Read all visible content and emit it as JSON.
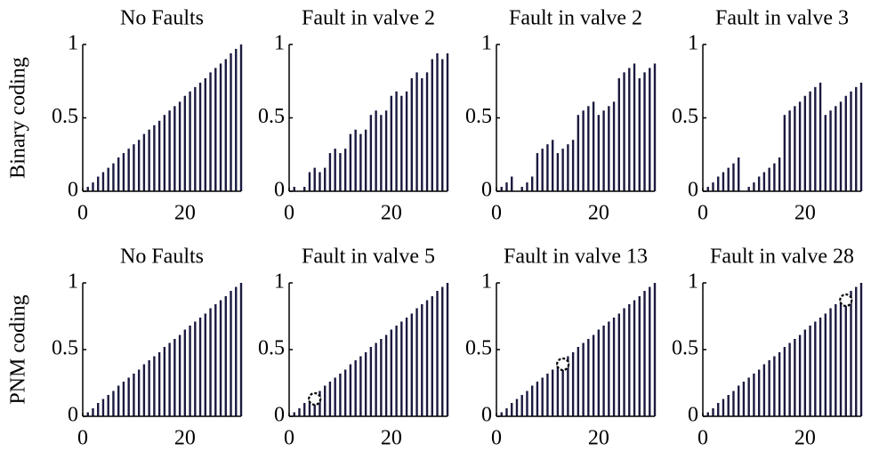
{
  "chart_data": [
    {
      "type": "bar",
      "title": "No Faults",
      "ylabel": "Binary coding",
      "color": "#1a1a40",
      "x": [
        1,
        2,
        3,
        4,
        5,
        6,
        7,
        8,
        9,
        10,
        11,
        12,
        13,
        14,
        15,
        16,
        17,
        18,
        19,
        20,
        21,
        22,
        23,
        24,
        25,
        26,
        27,
        28,
        29,
        30,
        31
      ],
      "values": [
        0.03,
        0.06,
        0.1,
        0.13,
        0.16,
        0.19,
        0.23,
        0.26,
        0.29,
        0.32,
        0.35,
        0.39,
        0.42,
        0.45,
        0.48,
        0.52,
        0.55,
        0.58,
        0.61,
        0.65,
        0.68,
        0.71,
        0.74,
        0.77,
        0.81,
        0.84,
        0.87,
        0.9,
        0.94,
        0.97,
        1
      ],
      "xlim": [
        0,
        31
      ],
      "ylim": [
        0,
        1
      ],
      "xticks": [
        0,
        20
      ],
      "yticks": [
        0,
        0.5,
        1
      ]
    },
    {
      "type": "bar",
      "title": "Fault in valve 2",
      "color": "#1a1a40",
      "x": [
        1,
        2,
        3,
        4,
        5,
        6,
        7,
        8,
        9,
        10,
        11,
        12,
        13,
        14,
        15,
        16,
        17,
        18,
        19,
        20,
        21,
        22,
        23,
        24,
        25,
        26,
        27,
        28,
        29,
        30,
        31
      ],
      "values": [
        0.03,
        0,
        0.03,
        0.13,
        0.16,
        0.13,
        0.16,
        0.26,
        0.29,
        0.26,
        0.29,
        0.39,
        0.42,
        0.39,
        0.42,
        0.52,
        0.55,
        0.52,
        0.55,
        0.65,
        0.68,
        0.65,
        0.68,
        0.77,
        0.81,
        0.77,
        0.81,
        0.9,
        0.94,
        0.9,
        0.94
      ],
      "xlim": [
        0,
        31
      ],
      "ylim": [
        0,
        1
      ],
      "xticks": [
        0,
        20
      ],
      "yticks": [
        0,
        0.5,
        1
      ]
    },
    {
      "type": "bar",
      "title": "Fault in valve 2",
      "color": "#1a1a40",
      "x": [
        1,
        2,
        3,
        4,
        5,
        6,
        7,
        8,
        9,
        10,
        11,
        12,
        13,
        14,
        15,
        16,
        17,
        18,
        19,
        20,
        21,
        22,
        23,
        24,
        25,
        26,
        27,
        28,
        29,
        30,
        31
      ],
      "values": [
        0.03,
        0.06,
        0.1,
        0,
        0.03,
        0.06,
        0.1,
        0.26,
        0.29,
        0.32,
        0.35,
        0.26,
        0.29,
        0.32,
        0.35,
        0.52,
        0.55,
        0.58,
        0.61,
        0.52,
        0.55,
        0.58,
        0.61,
        0.77,
        0.81,
        0.84,
        0.87,
        0.77,
        0.81,
        0.84,
        0.87
      ],
      "xlim": [
        0,
        31
      ],
      "ylim": [
        0,
        1
      ],
      "xticks": [
        0,
        20
      ],
      "yticks": [
        0,
        0.5,
        1
      ]
    },
    {
      "type": "bar",
      "title": "Fault in valve 3",
      "color": "#1a1a40",
      "x": [
        1,
        2,
        3,
        4,
        5,
        6,
        7,
        8,
        9,
        10,
        11,
        12,
        13,
        14,
        15,
        16,
        17,
        18,
        19,
        20,
        21,
        22,
        23,
        24,
        25,
        26,
        27,
        28,
        29,
        30,
        31
      ],
      "values": [
        0.03,
        0.06,
        0.1,
        0.13,
        0.16,
        0.19,
        0.23,
        0,
        0.03,
        0.06,
        0.1,
        0.13,
        0.16,
        0.19,
        0.23,
        0.52,
        0.55,
        0.58,
        0.61,
        0.65,
        0.68,
        0.71,
        0.74,
        0.52,
        0.55,
        0.58,
        0.61,
        0.65,
        0.68,
        0.71,
        0.74
      ],
      "xlim": [
        0,
        31
      ],
      "ylim": [
        0,
        1
      ],
      "xticks": [
        0,
        20
      ],
      "yticks": [
        0,
        0.5,
        1
      ]
    },
    {
      "type": "bar",
      "title": "No Faults",
      "ylabel": "PNM coding",
      "color": "#1a1a40",
      "x": [
        1,
        2,
        3,
        4,
        5,
        6,
        7,
        8,
        9,
        10,
        11,
        12,
        13,
        14,
        15,
        16,
        17,
        18,
        19,
        20,
        21,
        22,
        23,
        24,
        25,
        26,
        27,
        28,
        29,
        30,
        31
      ],
      "values": [
        0.03,
        0.06,
        0.1,
        0.13,
        0.16,
        0.19,
        0.23,
        0.26,
        0.29,
        0.32,
        0.35,
        0.39,
        0.42,
        0.45,
        0.48,
        0.52,
        0.55,
        0.58,
        0.61,
        0.65,
        0.68,
        0.71,
        0.74,
        0.77,
        0.81,
        0.84,
        0.87,
        0.9,
        0.94,
        0.97,
        1
      ],
      "xlim": [
        0,
        31
      ],
      "ylim": [
        0,
        1
      ],
      "xticks": [
        0,
        20
      ],
      "yticks": [
        0,
        0.5,
        1
      ]
    },
    {
      "type": "bar",
      "title": "Fault in valve 5",
      "color": "#1a1a40",
      "highlight_x": 5,
      "x": [
        1,
        2,
        3,
        4,
        5,
        6,
        7,
        8,
        9,
        10,
        11,
        12,
        13,
        14,
        15,
        16,
        17,
        18,
        19,
        20,
        21,
        22,
        23,
        24,
        25,
        26,
        27,
        28,
        29,
        30,
        31
      ],
      "values": [
        0.03,
        0.06,
        0.1,
        0.13,
        0.13,
        0.19,
        0.23,
        0.26,
        0.29,
        0.32,
        0.35,
        0.39,
        0.42,
        0.45,
        0.48,
        0.52,
        0.55,
        0.58,
        0.61,
        0.65,
        0.68,
        0.71,
        0.74,
        0.77,
        0.81,
        0.84,
        0.87,
        0.9,
        0.94,
        0.97,
        1
      ],
      "xlim": [
        0,
        31
      ],
      "ylim": [
        0,
        1
      ],
      "xticks": [
        0,
        20
      ],
      "yticks": [
        0,
        0.5,
        1
      ]
    },
    {
      "type": "bar",
      "title": "Fault in valve 13",
      "color": "#1a1a40",
      "highlight_x": 13,
      "x": [
        1,
        2,
        3,
        4,
        5,
        6,
        7,
        8,
        9,
        10,
        11,
        12,
        13,
        14,
        15,
        16,
        17,
        18,
        19,
        20,
        21,
        22,
        23,
        24,
        25,
        26,
        27,
        28,
        29,
        30,
        31
      ],
      "values": [
        0.03,
        0.06,
        0.1,
        0.13,
        0.16,
        0.19,
        0.23,
        0.26,
        0.29,
        0.32,
        0.35,
        0.39,
        0.39,
        0.45,
        0.48,
        0.52,
        0.55,
        0.58,
        0.61,
        0.65,
        0.68,
        0.71,
        0.74,
        0.77,
        0.81,
        0.84,
        0.87,
        0.9,
        0.94,
        0.97,
        1
      ],
      "xlim": [
        0,
        31
      ],
      "ylim": [
        0,
        1
      ],
      "xticks": [
        0,
        20
      ],
      "yticks": [
        0,
        0.5,
        1
      ]
    },
    {
      "type": "bar",
      "title": "Fault in valve 28",
      "color": "#1a1a40",
      "highlight_x": 28,
      "x": [
        1,
        2,
        3,
        4,
        5,
        6,
        7,
        8,
        9,
        10,
        11,
        12,
        13,
        14,
        15,
        16,
        17,
        18,
        19,
        20,
        21,
        22,
        23,
        24,
        25,
        26,
        27,
        28,
        29,
        30,
        31
      ],
      "values": [
        0.03,
        0.06,
        0.1,
        0.13,
        0.16,
        0.19,
        0.23,
        0.26,
        0.29,
        0.32,
        0.35,
        0.39,
        0.42,
        0.45,
        0.48,
        0.52,
        0.55,
        0.58,
        0.61,
        0.65,
        0.68,
        0.71,
        0.74,
        0.77,
        0.81,
        0.84,
        0.87,
        0.87,
        0.94,
        0.97,
        1
      ],
      "xlim": [
        0,
        31
      ],
      "ylim": [
        0,
        1
      ],
      "xticks": [
        0,
        20
      ],
      "yticks": [
        0,
        0.5,
        1
      ]
    }
  ]
}
